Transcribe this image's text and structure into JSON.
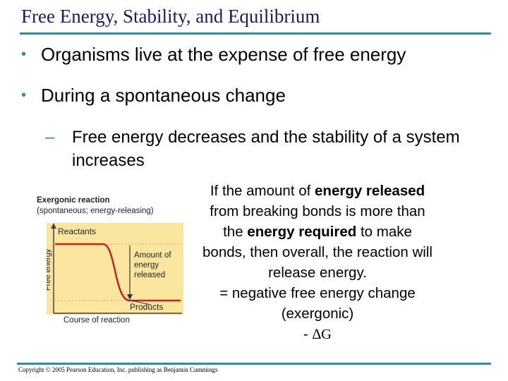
{
  "title": "Free Energy, Stability, and Equilibrium",
  "bullets": [
    "Organisms live at the expense of free energy",
    "During a spontaneous change"
  ],
  "sub_bullet": {
    "dash": "–",
    "text": "Free energy decreases and the stability of a system increases"
  },
  "figure": {
    "title": "Exergonic reaction",
    "subtitle": "(spontaneous; energy-releasing)",
    "y_label": "Free energy",
    "x_label": "Course of reaction",
    "reactants_label": "Reactants",
    "products_label": "Products",
    "released_label_1": "Amount of",
    "released_label_2": "energy",
    "released_label_3": "released",
    "colors": {
      "background": "#fbe6a0",
      "curve": "#cc1f1f",
      "axis": "#444444"
    }
  },
  "caption": {
    "l1a": "If the amount of ",
    "l1b": "energy released",
    "l2": "from breaking bonds is more than",
    "l3a": "the ",
    "l3b": "energy required",
    "l3c": " to make",
    "l4": "bonds, then overall, the reaction will",
    "l5": "release energy.",
    "l6": "= negative free energy change",
    "l7": "(exergonic)",
    "l8a": "- ",
    "l8b": "∆G"
  },
  "copyright": "Copyright © 2005 Pearson Education, Inc. publishing as Benjamin Cummings"
}
